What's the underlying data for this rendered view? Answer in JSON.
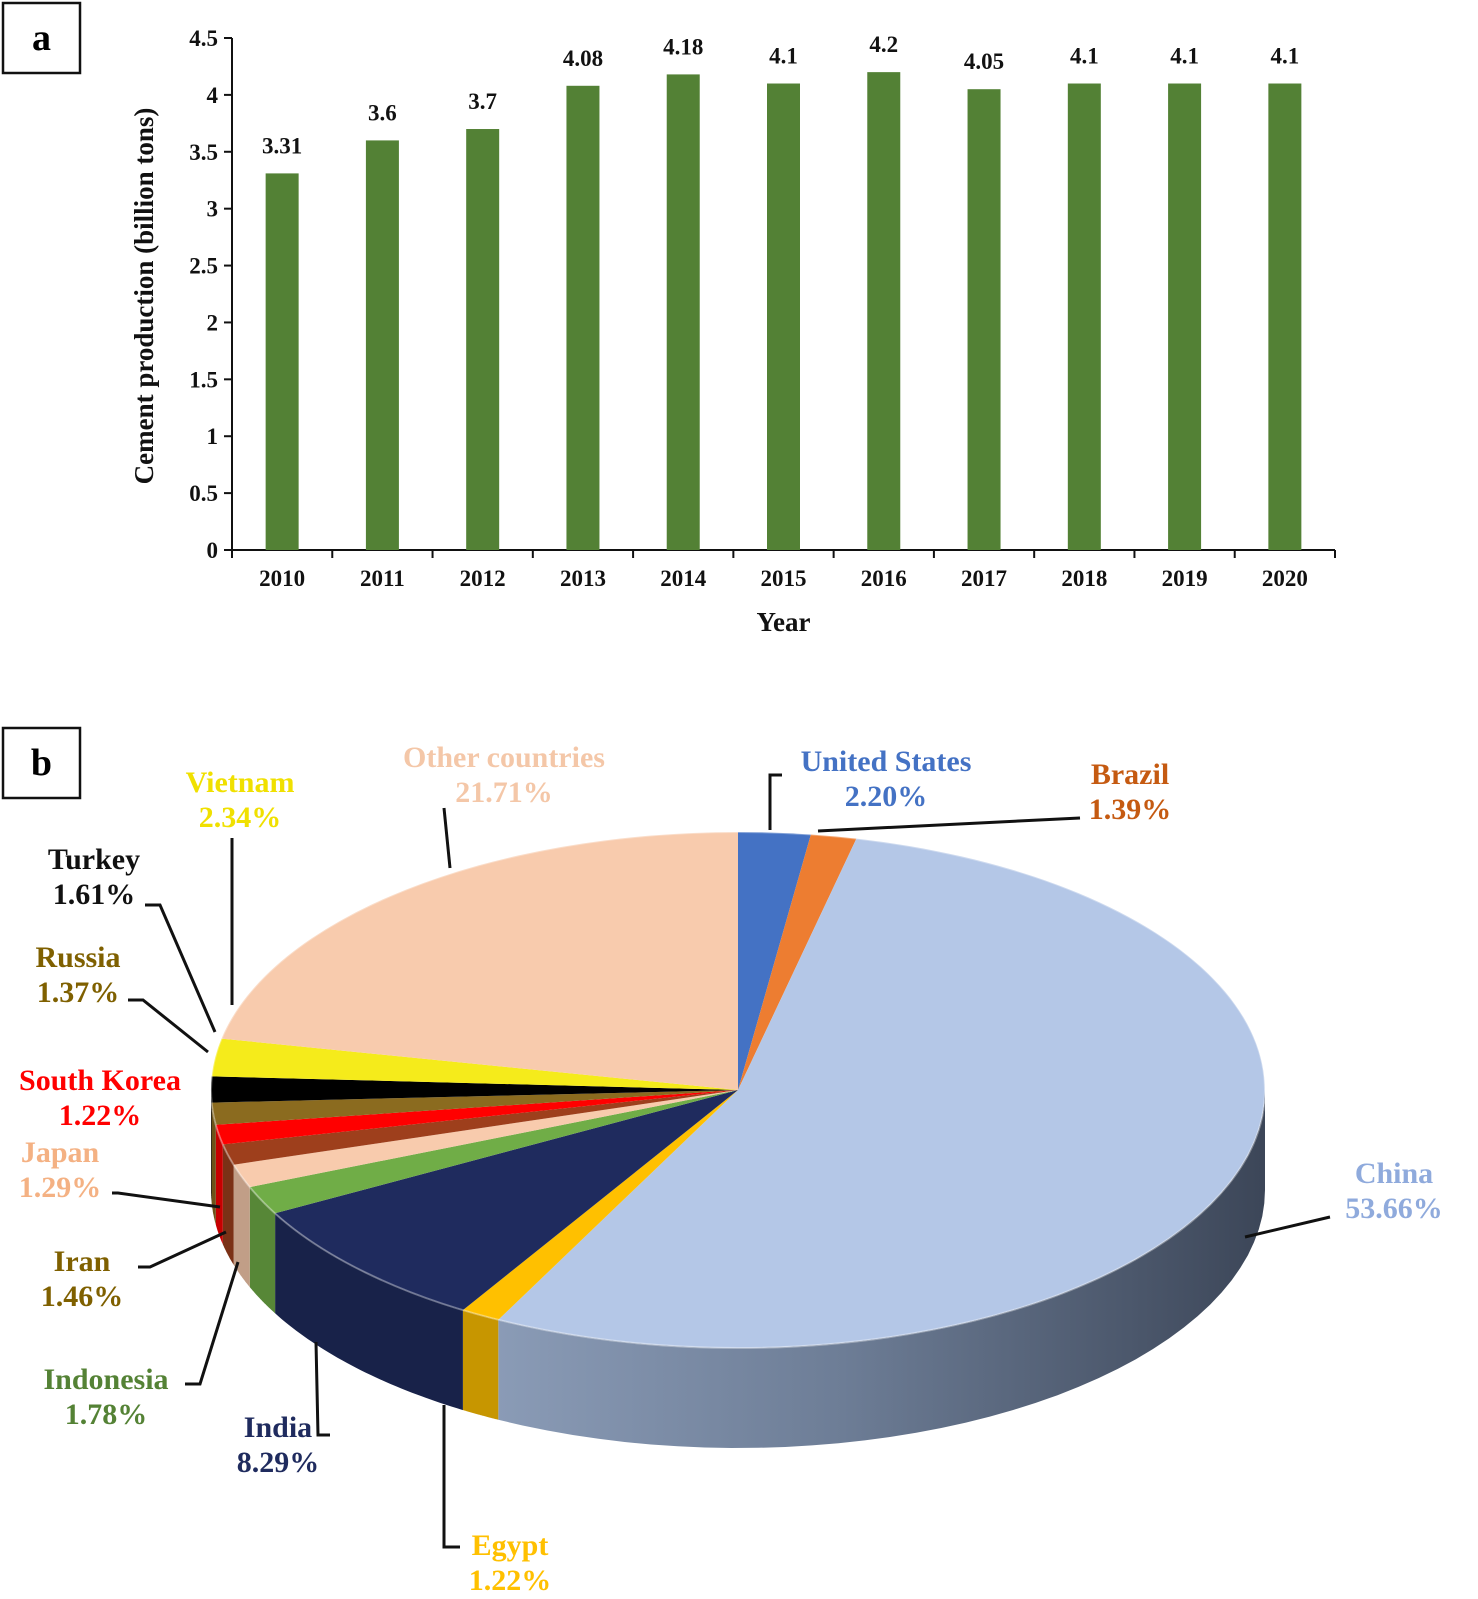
{
  "chart_data": [
    {
      "panel": "a",
      "type": "bar",
      "title": "",
      "xlabel": "Year",
      "ylabel": "Cement production (billion tons)",
      "categories": [
        "2010",
        "2011",
        "2012",
        "2013",
        "2014",
        "2015",
        "2016",
        "2017",
        "2018",
        "2019",
        "2020"
      ],
      "values": [
        3.31,
        3.6,
        3.7,
        4.08,
        4.18,
        4.1,
        4.2,
        4.05,
        4.1,
        4.1,
        4.1
      ],
      "data_labels": [
        "3.31",
        "3.6",
        "3.7",
        "4.08",
        "4.18",
        "4.1",
        "4.2",
        "4.05",
        "4.1",
        "4.1",
        "4.1"
      ],
      "ylim": [
        0,
        4.5
      ],
      "yticks": [
        "0",
        "0.5",
        "1",
        "1.5",
        "2",
        "2.5",
        "3",
        "3.5",
        "4",
        "4.5"
      ],
      "bar_color": "#538135",
      "grid": false
    },
    {
      "panel": "b",
      "type": "pie",
      "style": "3d",
      "title": "",
      "slices": [
        {
          "name": "United States",
          "value": 2.2,
          "label": "2.20%",
          "color": "#4472c4",
          "label_color": "#4472c4"
        },
        {
          "name": "Brazil",
          "value": 1.39,
          "label": "1.39%",
          "color": "#ed7d31",
          "label_color": "#c55a11"
        },
        {
          "name": "China",
          "value": 53.66,
          "label": "53.66%",
          "color": "#b4c7e7",
          "label_color": "#8faadc"
        },
        {
          "name": "Egypt",
          "value": 1.22,
          "label": "1.22%",
          "color": "#ffc000",
          "label_color": "#ffc000"
        },
        {
          "name": "India",
          "value": 8.29,
          "label": "8.29%",
          "color": "#1f2b5e",
          "label_color": "#1f2b5e"
        },
        {
          "name": "Indonesia",
          "value": 1.78,
          "label": "1.78%",
          "color": "#70ad47",
          "label_color": "#548235"
        },
        {
          "name": "Iran",
          "value": 1.46,
          "label": "1.46%",
          "color": "#f8cbad",
          "label_color": "#7f6000"
        },
        {
          "name": "Japan",
          "value": 1.29,
          "label": "1.29%",
          "color": "#9e3f1c",
          "label_color": "#f4b183"
        },
        {
          "name": "South Korea",
          "value": 1.22,
          "label": "1.22%",
          "color": "#ff0000",
          "label_color": "#ff0000"
        },
        {
          "name": "Russia",
          "value": 1.37,
          "label": "1.37%",
          "color": "#8b6b1f",
          "label_color": "#7f6000"
        },
        {
          "name": "Turkey",
          "value": 1.61,
          "label": "1.61%",
          "color": "#000000",
          "label_color": "#111111"
        },
        {
          "name": "Vietnam",
          "value": 2.34,
          "label": "2.34%",
          "color": "#f5eb1b",
          "label_color": "#f0e000"
        },
        {
          "name": "Other countries",
          "value": 21.71,
          "label": "21.71%",
          "color": "#f8cbad",
          "label_color": "#f4c7a8"
        }
      ]
    }
  ],
  "panels": {
    "a": "a",
    "b": "b"
  }
}
